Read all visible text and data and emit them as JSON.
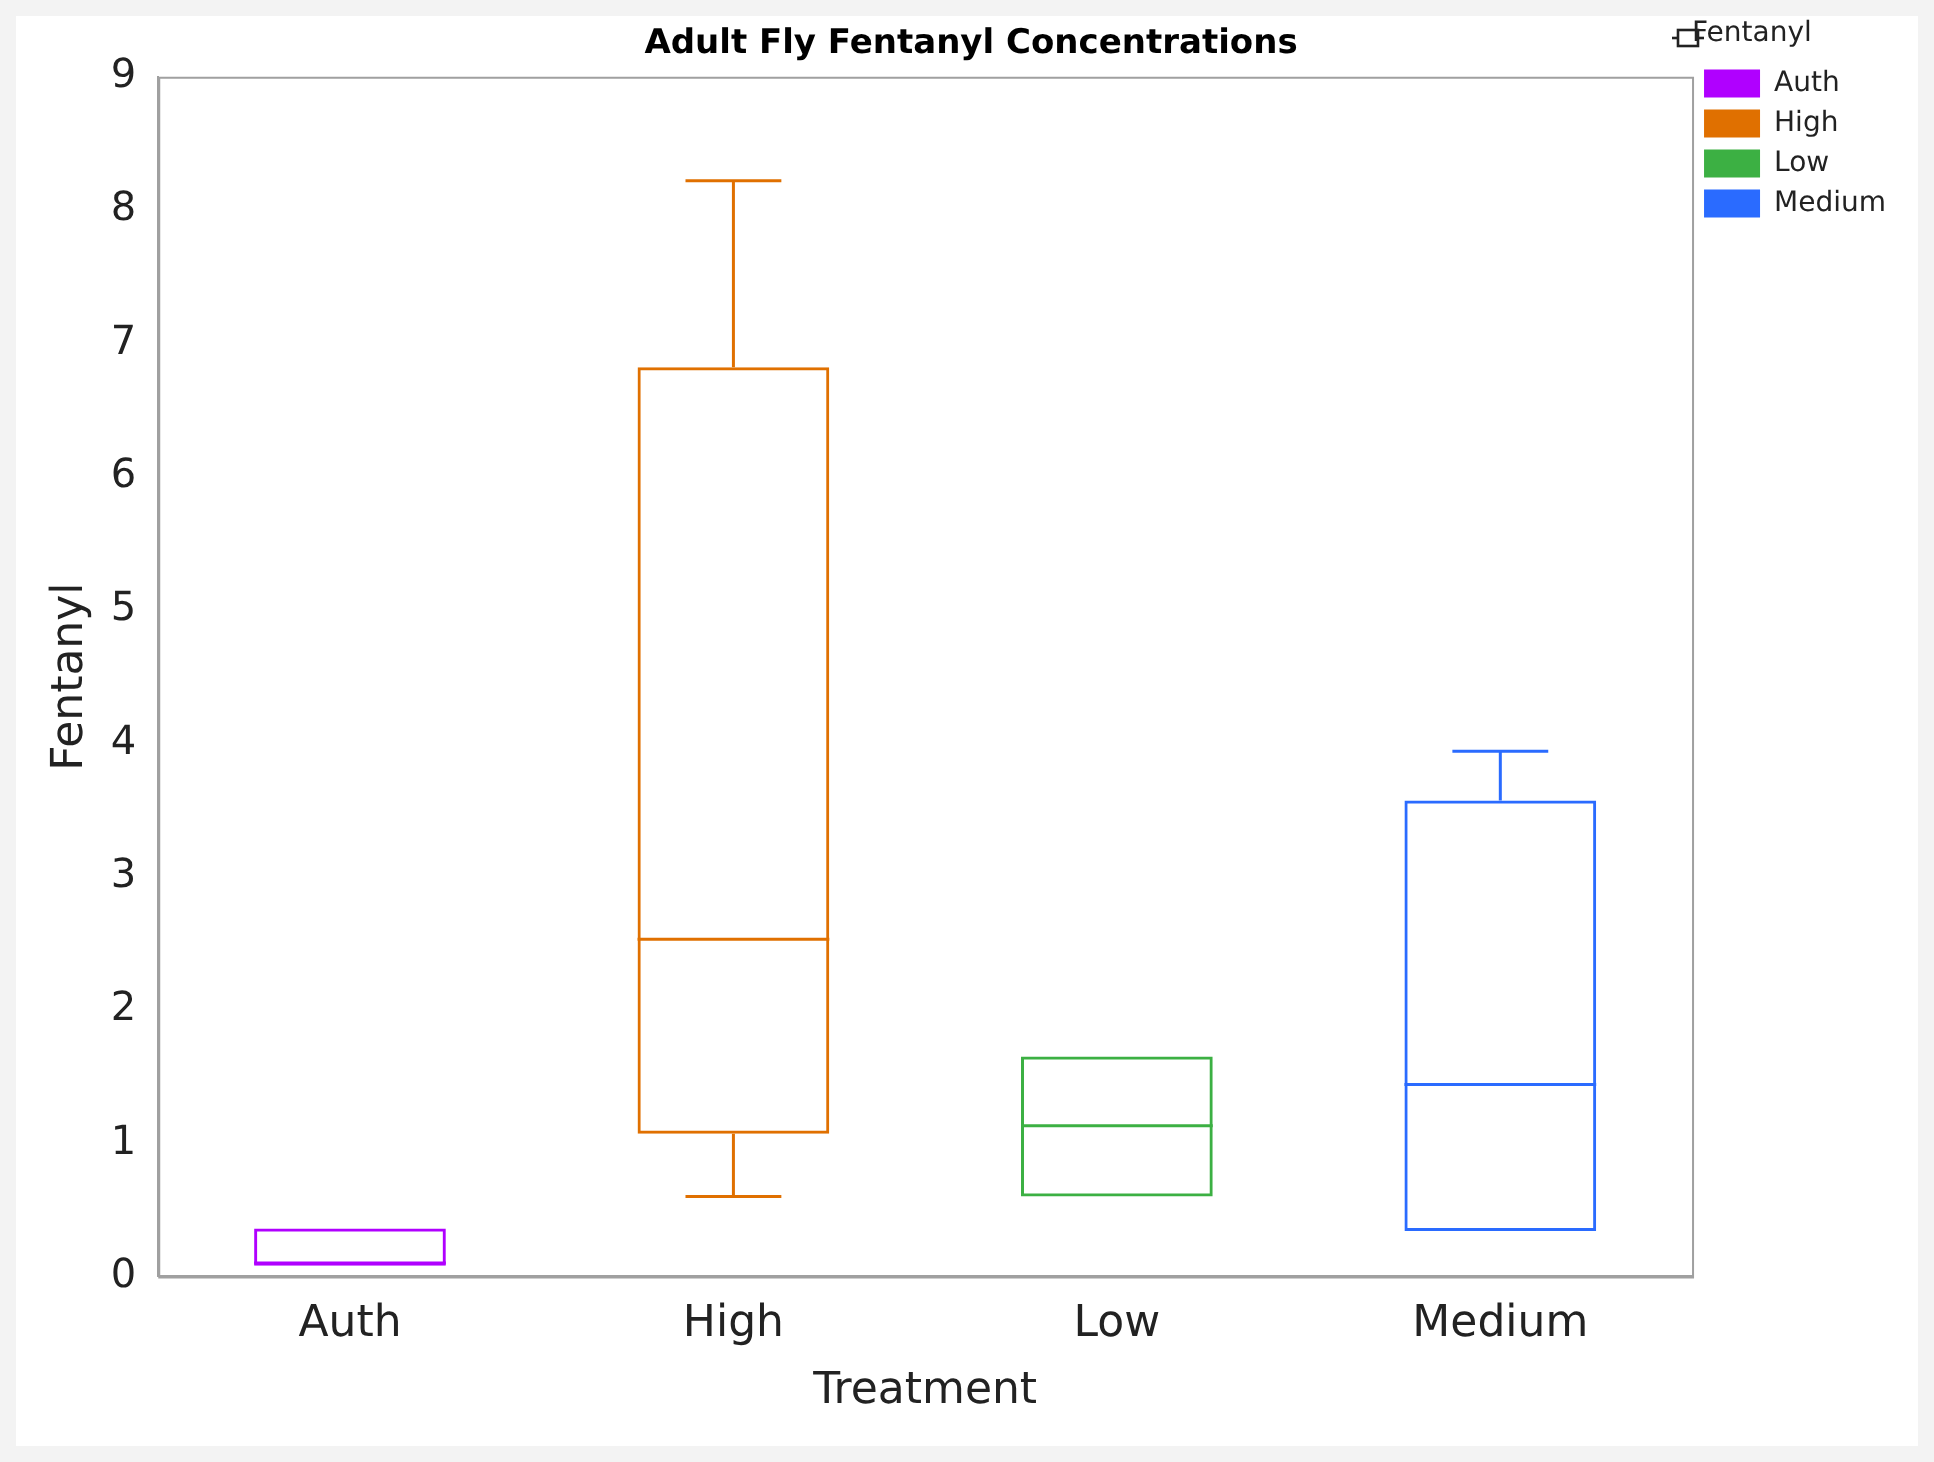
{
  "chart_data": {
    "type": "box",
    "title": "Adult Fly Fentanyl Concentrations",
    "xlabel": "Treatment",
    "ylabel": "Fentanyl",
    "legend_title": "Fentanyl",
    "legend": "top right",
    "categories": [
      "Auth",
      "High",
      "Low",
      "Medium"
    ],
    "series": [
      {
        "name": "Auth",
        "color": "#b000ff",
        "boxes": [
          {
            "low": 0.08,
            "q1": 0.08,
            "median": 0.1,
            "q3": 0.36,
            "high": 0.36
          },
          null,
          null,
          null
        ]
      },
      {
        "name": "High",
        "color": "#e07000",
        "boxes": [
          null,
          {
            "low": 0.6,
            "q1": 1.07,
            "median": 2.53,
            "q3": 6.82,
            "high": 8.22
          },
          null,
          null
        ]
      },
      {
        "name": "Low",
        "color": "#3cb043",
        "boxes": [
          null,
          null,
          {
            "low": 0.6,
            "q1": 0.6,
            "median": 1.13,
            "q3": 1.65,
            "high": 1.65
          },
          null
        ]
      },
      {
        "name": "Medium",
        "color": "#2a6bff",
        "boxes": [
          null,
          null,
          null,
          {
            "low": 0.34,
            "q1": 0.34,
            "median": 1.44,
            "q3": 3.57,
            "high": 3.94
          }
        ]
      }
    ],
    "ylim": [
      0,
      9
    ],
    "yticks": [
      0,
      1,
      2,
      3,
      4,
      5,
      6,
      7,
      8,
      9
    ],
    "grid": false
  }
}
